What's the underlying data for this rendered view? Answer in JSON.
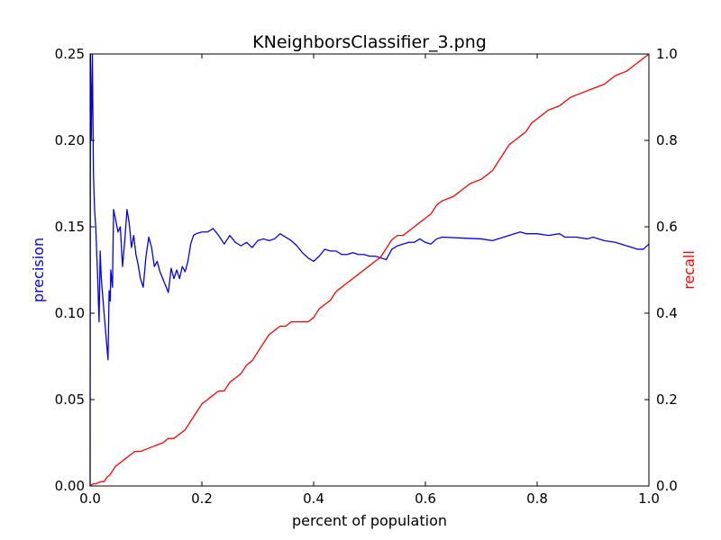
{
  "chart_data": {
    "type": "line",
    "title": "KNeighborsClassifier_3.png",
    "xlabel": "percent of population",
    "ylabel_left": "precision",
    "ylabel_right": "recall",
    "xlim": [
      0.0,
      1.0
    ],
    "ylim_left": [
      0.0,
      0.25
    ],
    "ylim_right": [
      0.0,
      1.0
    ],
    "grid": false,
    "x_ticks": [
      "0.0",
      "0.2",
      "0.4",
      "0.6",
      "0.8",
      "1.0"
    ],
    "y_left_ticks": [
      "0.00",
      "0.05",
      "0.10",
      "0.15",
      "0.20",
      "0.25"
    ],
    "y_right_ticks": [
      "0.0",
      "0.2",
      "0.4",
      "0.6",
      "0.8",
      "1.0"
    ],
    "series": [
      {
        "name": "precision",
        "axis": "left",
        "color": "#0000ff",
        "points": [
          [
            0.0,
            0.0
          ],
          [
            0.0005,
            0.25
          ],
          [
            0.002,
            0.2
          ],
          [
            0.004,
            0.25
          ],
          [
            0.006,
            0.18
          ],
          [
            0.008,
            0.16
          ],
          [
            0.01,
            0.15
          ],
          [
            0.013,
            0.125
          ],
          [
            0.016,
            0.095
          ],
          [
            0.018,
            0.136
          ],
          [
            0.02,
            0.12
          ],
          [
            0.025,
            0.1
          ],
          [
            0.032,
            0.073
          ],
          [
            0.034,
            0.113
          ],
          [
            0.036,
            0.107
          ],
          [
            0.037,
            0.125
          ],
          [
            0.04,
            0.115
          ],
          [
            0.042,
            0.16
          ],
          [
            0.045,
            0.155
          ],
          [
            0.05,
            0.147
          ],
          [
            0.054,
            0.15
          ],
          [
            0.058,
            0.127
          ],
          [
            0.062,
            0.142
          ],
          [
            0.066,
            0.16
          ],
          [
            0.07,
            0.152
          ],
          [
            0.074,
            0.138
          ],
          [
            0.078,
            0.145
          ],
          [
            0.082,
            0.134
          ],
          [
            0.086,
            0.128
          ],
          [
            0.09,
            0.12
          ],
          [
            0.095,
            0.115
          ],
          [
            0.1,
            0.133
          ],
          [
            0.105,
            0.144
          ],
          [
            0.11,
            0.138
          ],
          [
            0.115,
            0.127
          ],
          [
            0.12,
            0.13
          ],
          [
            0.125,
            0.124
          ],
          [
            0.13,
            0.12
          ],
          [
            0.135,
            0.116
          ],
          [
            0.14,
            0.112
          ],
          [
            0.145,
            0.126
          ],
          [
            0.15,
            0.12
          ],
          [
            0.155,
            0.125
          ],
          [
            0.16,
            0.12
          ],
          [
            0.165,
            0.127
          ],
          [
            0.17,
            0.124
          ],
          [
            0.175,
            0.13
          ],
          [
            0.18,
            0.14
          ],
          [
            0.185,
            0.145
          ],
          [
            0.19,
            0.146
          ],
          [
            0.2,
            0.147
          ],
          [
            0.21,
            0.147
          ],
          [
            0.22,
            0.149
          ],
          [
            0.23,
            0.145
          ],
          [
            0.24,
            0.14
          ],
          [
            0.25,
            0.145
          ],
          [
            0.26,
            0.141
          ],
          [
            0.27,
            0.139
          ],
          [
            0.28,
            0.141
          ],
          [
            0.29,
            0.138
          ],
          [
            0.3,
            0.142
          ],
          [
            0.31,
            0.143
          ],
          [
            0.32,
            0.142
          ],
          [
            0.33,
            0.143
          ],
          [
            0.34,
            0.146
          ],
          [
            0.35,
            0.144
          ],
          [
            0.36,
            0.142
          ],
          [
            0.37,
            0.139
          ],
          [
            0.38,
            0.135
          ],
          [
            0.39,
            0.132
          ],
          [
            0.4,
            0.13
          ],
          [
            0.41,
            0.133
          ],
          [
            0.42,
            0.137
          ],
          [
            0.43,
            0.136
          ],
          [
            0.44,
            0.136
          ],
          [
            0.45,
            0.134
          ],
          [
            0.46,
            0.134
          ],
          [
            0.47,
            0.135
          ],
          [
            0.48,
            0.134
          ],
          [
            0.49,
            0.134
          ],
          [
            0.5,
            0.133
          ],
          [
            0.51,
            0.133
          ],
          [
            0.52,
            0.132
          ],
          [
            0.53,
            0.131
          ],
          [
            0.54,
            0.137
          ],
          [
            0.55,
            0.139
          ],
          [
            0.56,
            0.14
          ],
          [
            0.57,
            0.141
          ],
          [
            0.58,
            0.141
          ],
          [
            0.59,
            0.143
          ],
          [
            0.6,
            0.141
          ],
          [
            0.61,
            0.14
          ],
          [
            0.62,
            0.143
          ],
          [
            0.63,
            0.144
          ],
          [
            0.7,
            0.143
          ],
          [
            0.72,
            0.142
          ],
          [
            0.74,
            0.144
          ],
          [
            0.75,
            0.145
          ],
          [
            0.76,
            0.146
          ],
          [
            0.77,
            0.147
          ],
          [
            0.78,
            0.146
          ],
          [
            0.8,
            0.146
          ],
          [
            0.82,
            0.145
          ],
          [
            0.84,
            0.146
          ],
          [
            0.85,
            0.144
          ],
          [
            0.87,
            0.144
          ],
          [
            0.89,
            0.143
          ],
          [
            0.9,
            0.144
          ],
          [
            0.92,
            0.142
          ],
          [
            0.94,
            0.141
          ],
          [
            0.96,
            0.139
          ],
          [
            0.97,
            0.138
          ],
          [
            0.98,
            0.137
          ],
          [
            0.99,
            0.137
          ],
          [
            1.0,
            0.14
          ]
        ]
      },
      {
        "name": "recall",
        "axis": "right",
        "color": "#ff0000",
        "points": [
          [
            0.0,
            0.0
          ],
          [
            0.005,
            0.005
          ],
          [
            0.01,
            0.005
          ],
          [
            0.015,
            0.008
          ],
          [
            0.02,
            0.01
          ],
          [
            0.025,
            0.01
          ],
          [
            0.03,
            0.02
          ],
          [
            0.035,
            0.025
          ],
          [
            0.04,
            0.035
          ],
          [
            0.045,
            0.045
          ],
          [
            0.05,
            0.05
          ],
          [
            0.055,
            0.055
          ],
          [
            0.06,
            0.06
          ],
          [
            0.065,
            0.065
          ],
          [
            0.07,
            0.07
          ],
          [
            0.075,
            0.075
          ],
          [
            0.08,
            0.08
          ],
          [
            0.09,
            0.08
          ],
          [
            0.1,
            0.085
          ],
          [
            0.11,
            0.09
          ],
          [
            0.12,
            0.095
          ],
          [
            0.13,
            0.1
          ],
          [
            0.14,
            0.11
          ],
          [
            0.15,
            0.11
          ],
          [
            0.16,
            0.12
          ],
          [
            0.17,
            0.13
          ],
          [
            0.18,
            0.15
          ],
          [
            0.19,
            0.17
          ],
          [
            0.2,
            0.19
          ],
          [
            0.21,
            0.2
          ],
          [
            0.22,
            0.21
          ],
          [
            0.23,
            0.22
          ],
          [
            0.24,
            0.22
          ],
          [
            0.25,
            0.24
          ],
          [
            0.26,
            0.25
          ],
          [
            0.27,
            0.26
          ],
          [
            0.28,
            0.28
          ],
          [
            0.29,
            0.29
          ],
          [
            0.3,
            0.31
          ],
          [
            0.31,
            0.33
          ],
          [
            0.32,
            0.35
          ],
          [
            0.33,
            0.36
          ],
          [
            0.34,
            0.37
          ],
          [
            0.35,
            0.37
          ],
          [
            0.36,
            0.38
          ],
          [
            0.37,
            0.38
          ],
          [
            0.38,
            0.38
          ],
          [
            0.39,
            0.38
          ],
          [
            0.4,
            0.39
          ],
          [
            0.41,
            0.41
          ],
          [
            0.42,
            0.42
          ],
          [
            0.43,
            0.43
          ],
          [
            0.44,
            0.45
          ],
          [
            0.45,
            0.46
          ],
          [
            0.46,
            0.47
          ],
          [
            0.47,
            0.48
          ],
          [
            0.48,
            0.49
          ],
          [
            0.49,
            0.5
          ],
          [
            0.5,
            0.51
          ],
          [
            0.51,
            0.52
          ],
          [
            0.52,
            0.53
          ],
          [
            0.53,
            0.55
          ],
          [
            0.54,
            0.57
          ],
          [
            0.55,
            0.58
          ],
          [
            0.56,
            0.58
          ],
          [
            0.57,
            0.59
          ],
          [
            0.58,
            0.6
          ],
          [
            0.59,
            0.61
          ],
          [
            0.6,
            0.62
          ],
          [
            0.61,
            0.63
          ],
          [
            0.62,
            0.65
          ],
          [
            0.63,
            0.66
          ],
          [
            0.65,
            0.67
          ],
          [
            0.68,
            0.7
          ],
          [
            0.7,
            0.71
          ],
          [
            0.72,
            0.73
          ],
          [
            0.73,
            0.75
          ],
          [
            0.74,
            0.77
          ],
          [
            0.75,
            0.79
          ],
          [
            0.76,
            0.8
          ],
          [
            0.77,
            0.81
          ],
          [
            0.78,
            0.82
          ],
          [
            0.79,
            0.84
          ],
          [
            0.8,
            0.85
          ],
          [
            0.81,
            0.86
          ],
          [
            0.82,
            0.87
          ],
          [
            0.84,
            0.88
          ],
          [
            0.85,
            0.89
          ],
          [
            0.86,
            0.9
          ],
          [
            0.88,
            0.91
          ],
          [
            0.9,
            0.92
          ],
          [
            0.92,
            0.93
          ],
          [
            0.94,
            0.95
          ],
          [
            0.96,
            0.96
          ],
          [
            0.97,
            0.97
          ],
          [
            0.98,
            0.98
          ],
          [
            0.99,
            0.99
          ],
          [
            1.0,
            1.0
          ]
        ]
      }
    ]
  }
}
